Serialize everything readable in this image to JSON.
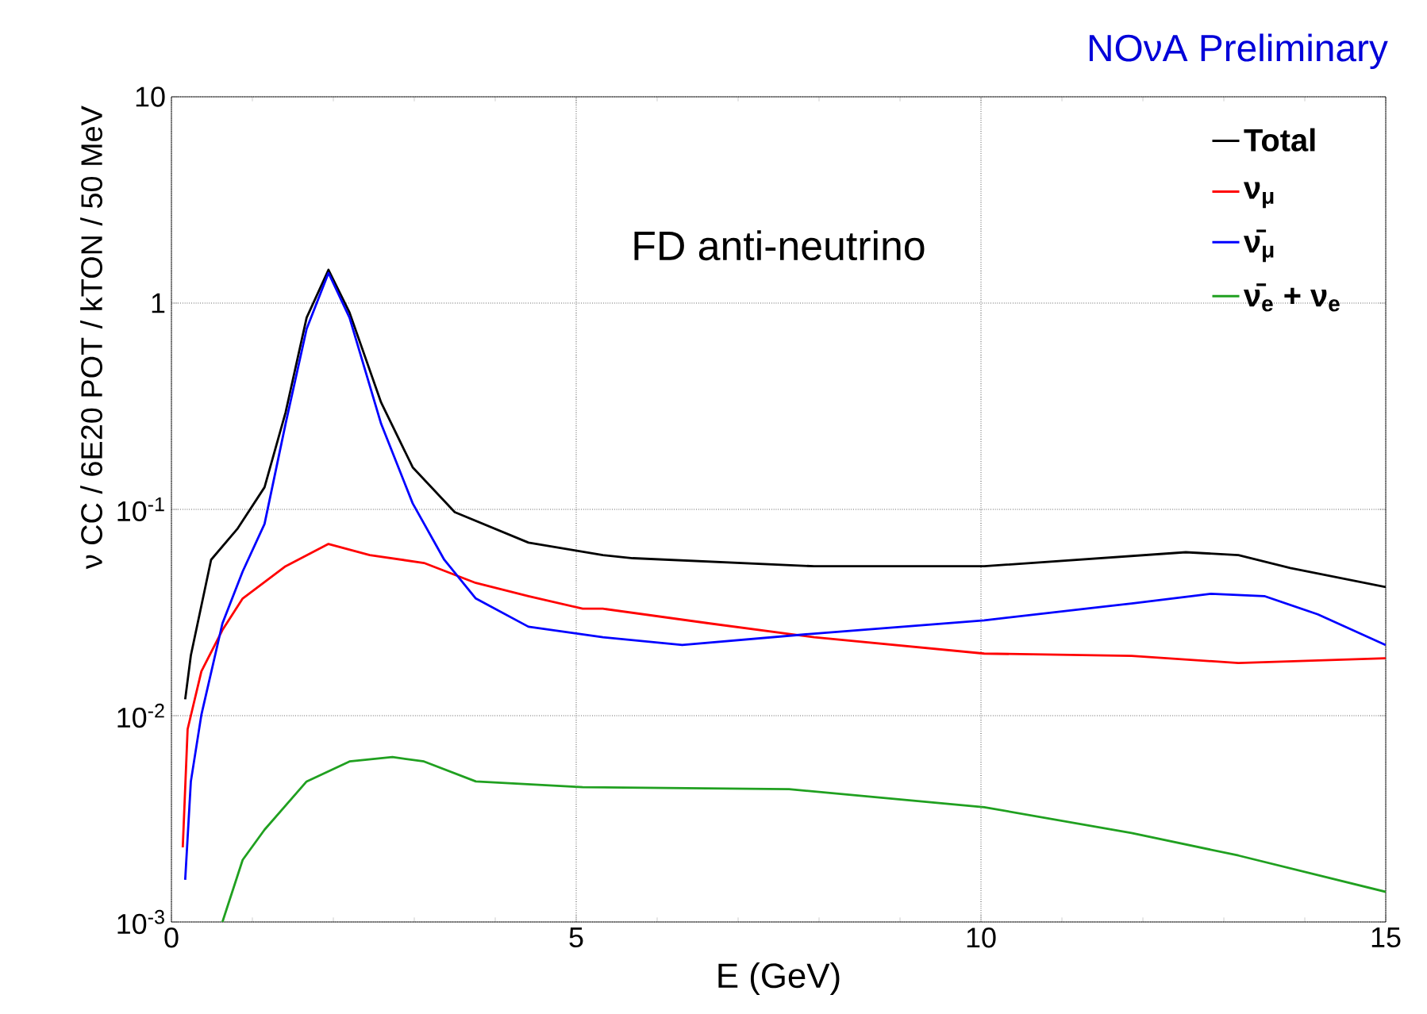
{
  "chart_data": {
    "type": "line",
    "title": "NOνA Preliminary",
    "xlabel": "E (GeV)",
    "ylabel": "ν CC / 6E20 POT / kTON / 50 MeV",
    "annotations": [
      "FD anti-neutrino"
    ],
    "log": "y",
    "grid": true,
    "legend": "top right",
    "marker": "none",
    "line_style": "solid",
    "xlim": [
      0,
      15
    ],
    "xticks": [
      0,
      5,
      10,
      15
    ],
    "ylim": [
      0.001,
      10
    ],
    "yticks": [
      {
        "value": 0.001,
        "label": "10$^{-3}$"
      },
      {
        "value": 0.01,
        "label": "10$^{-2}$"
      },
      {
        "value": 0.1,
        "label": "10$^{-1}$"
      },
      1,
      10
    ],
    "series": [
      {
        "name": "Total",
        "color": "#000000",
        "x": [
          0.17,
          0.24,
          0.49,
          0.82,
          1.15,
          1.41,
          1.67,
          1.94,
          2.2,
          2.59,
          2.98,
          3.5,
          4.41,
          5.33,
          5.7,
          7.94,
          10.04,
          12.53,
          13.18,
          13.82,
          15
        ],
        "values": [
          0.012,
          0.0196,
          0.057,
          0.081,
          0.128,
          0.295,
          0.85,
          1.45,
          0.9,
          0.33,
          0.16,
          0.097,
          0.069,
          0.06,
          0.058,
          0.053,
          0.053,
          0.062,
          0.06,
          0.052,
          0.042
        ]
      },
      {
        "name": "ν$_{μ}$",
        "color": "#ff0000",
        "x": [
          0.14,
          0.2,
          0.37,
          0.63,
          0.88,
          1.41,
          1.94,
          2.45,
          3.12,
          3.76,
          4.41,
          5.08,
          5.33,
          6.65,
          7.94,
          10.04,
          11.86,
          13.18,
          15
        ],
        "values": [
          0.0023,
          0.0086,
          0.0164,
          0.026,
          0.037,
          0.053,
          0.068,
          0.06,
          0.055,
          0.044,
          0.038,
          0.033,
          0.033,
          0.028,
          0.024,
          0.02,
          0.0195,
          0.018,
          0.019
        ]
      },
      {
        "name": "ν̄$_{μ}$",
        "color": "#0000ff",
        "x": [
          0.17,
          0.24,
          0.37,
          0.63,
          0.88,
          1.15,
          1.41,
          1.67,
          1.94,
          2.2,
          2.59,
          2.98,
          3.37,
          3.76,
          4.41,
          5.33,
          6.31,
          7.94,
          10.04,
          11.86,
          12.84,
          13.5,
          14.16,
          15
        ],
        "values": [
          0.0016,
          0.0048,
          0.0101,
          0.028,
          0.05,
          0.085,
          0.26,
          0.75,
          1.4,
          0.85,
          0.26,
          0.107,
          0.057,
          0.037,
          0.027,
          0.024,
          0.022,
          0.025,
          0.029,
          0.035,
          0.039,
          0.038,
          0.031,
          0.022
        ]
      },
      {
        "name": "ν̄$_{e}$ + ν$_{e}$",
        "color": "#20a020",
        "x": [
          0.63,
          0.88,
          1.15,
          1.67,
          2.2,
          2.73,
          3.12,
          3.76,
          5.08,
          7.63,
          10.04,
          11.86,
          13.18,
          15
        ],
        "values": [
          0.001,
          0.002,
          0.0028,
          0.0048,
          0.006,
          0.0063,
          0.006,
          0.0048,
          0.0045,
          0.0044,
          0.0036,
          0.0027,
          0.0021,
          0.0014
        ]
      }
    ]
  }
}
